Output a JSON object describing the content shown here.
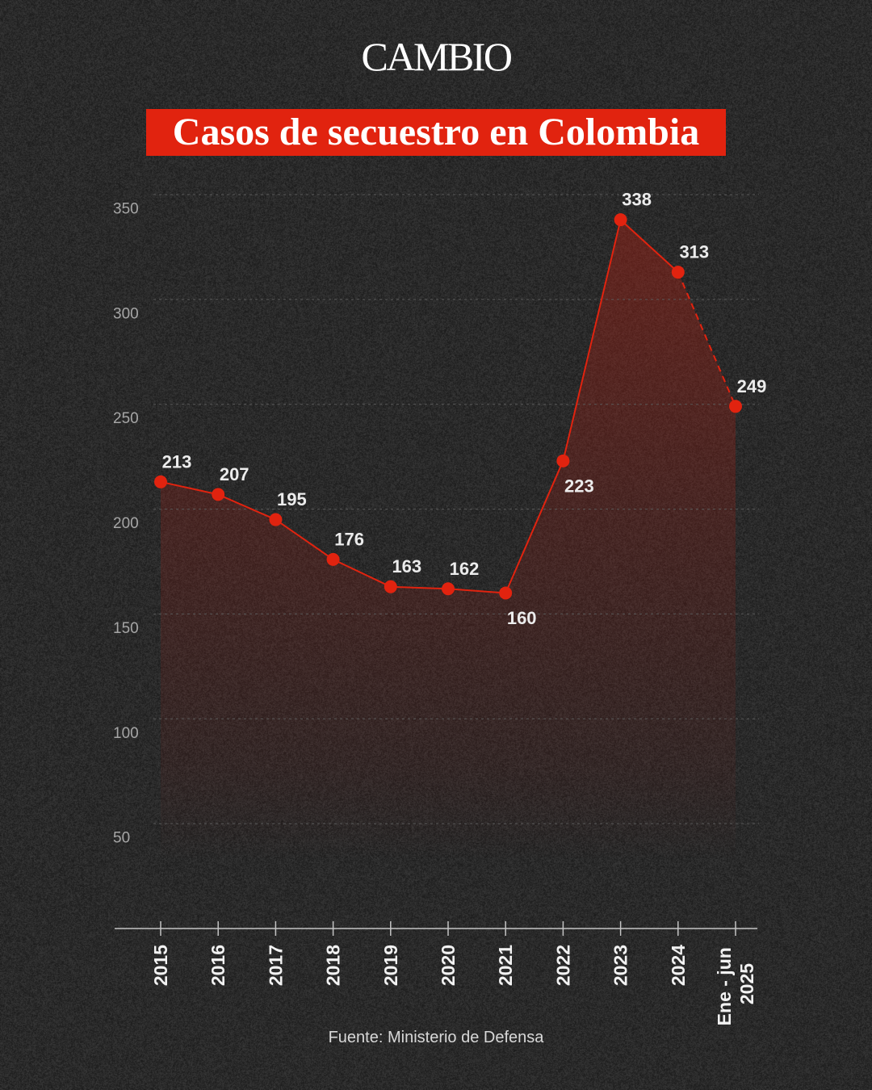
{
  "brand": {
    "logo_text": "CAMBIO"
  },
  "source": "Fuente: Ministerio de Defensa",
  "colors": {
    "background": "#2a2a2a",
    "accent": "#e1230f",
    "text": "#ffffff",
    "data_label": "#ececec",
    "tick_label": "#a6a6a6",
    "axis": "#c4c4c4",
    "grid": "#5a5a5a"
  },
  "chart_data": {
    "type": "line",
    "title": "Casos de secuestro en Colombia",
    "categories": [
      "2015",
      "2016",
      "2017",
      "2018",
      "2019",
      "2020",
      "2021",
      "2022",
      "2023",
      "2024",
      "Ene - jun 2025"
    ],
    "values": [
      213,
      207,
      195,
      176,
      163,
      162,
      160,
      223,
      338,
      313,
      249
    ],
    "ylim": [
      0,
      350
    ],
    "yticks": [
      350,
      300,
      250,
      200,
      150,
      100,
      50
    ],
    "grid": true,
    "area_fill": true,
    "data_labels": true,
    "last_segment_dashed": true
  }
}
